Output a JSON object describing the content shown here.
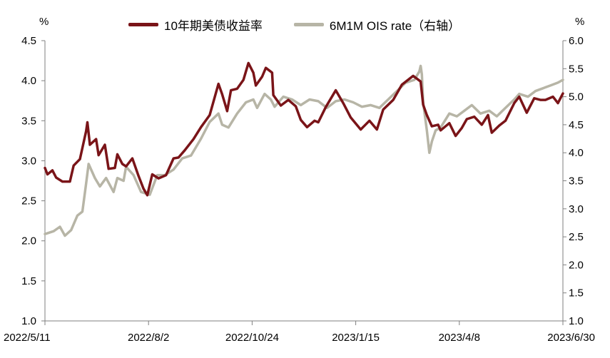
{
  "chart_data": {
    "type": "line",
    "title": "",
    "left_unit": "%",
    "right_unit": "%",
    "x_ticks": [
      "2022/5/11",
      "2022/8/2",
      "2022/10/24",
      "2023/1/15",
      "2023/4/8",
      "2023/6/30"
    ],
    "x_start": "2022/5/11",
    "x_end": "2023/6/30",
    "ylim_left": [
      1.0,
      4.5
    ],
    "yticks_left": [
      "1.0",
      "1.5",
      "2.0",
      "2.5",
      "3.0",
      "3.5",
      "4.0",
      "4.5"
    ],
    "ylim_right": [
      1.0,
      6.0
    ],
    "yticks_right": [
      "1.0",
      "1.5",
      "2.0",
      "2.5",
      "3.0",
      "3.5",
      "4.0",
      "4.5",
      "5.0",
      "5.5",
      "6.0"
    ],
    "legend_position": "top",
    "grid": false,
    "series": [
      {
        "name": "10年期美债收益率",
        "axis": "left",
        "color": "#7a1418",
        "points": [
          [
            "2022-05-11",
            2.91
          ],
          [
            "2022-05-13",
            2.83
          ],
          [
            "2022-05-17",
            2.88
          ],
          [
            "2022-05-20",
            2.79
          ],
          [
            "2022-05-25",
            2.74
          ],
          [
            "2022-05-31",
            2.74
          ],
          [
            "2022-06-03",
            2.94
          ],
          [
            "2022-06-08",
            3.02
          ],
          [
            "2022-06-13",
            3.37
          ],
          [
            "2022-06-14",
            3.48
          ],
          [
            "2022-06-16",
            3.2
          ],
          [
            "2022-06-21",
            3.27
          ],
          [
            "2022-06-23",
            3.07
          ],
          [
            "2022-06-28",
            3.2
          ],
          [
            "2022-07-01",
            2.9
          ],
          [
            "2022-07-06",
            2.91
          ],
          [
            "2022-07-08",
            3.08
          ],
          [
            "2022-07-12",
            2.96
          ],
          [
            "2022-07-15",
            2.93
          ],
          [
            "2022-07-20",
            3.03
          ],
          [
            "2022-07-25",
            2.81
          ],
          [
            "2022-07-29",
            2.65
          ],
          [
            "2022-08-01",
            2.57
          ],
          [
            "2022-08-05",
            2.83
          ],
          [
            "2022-08-10",
            2.78
          ],
          [
            "2022-08-16",
            2.82
          ],
          [
            "2022-08-22",
            3.03
          ],
          [
            "2022-08-26",
            3.04
          ],
          [
            "2022-08-31",
            3.13
          ],
          [
            "2022-09-07",
            3.27
          ],
          [
            "2022-09-13",
            3.42
          ],
          [
            "2022-09-20",
            3.57
          ],
          [
            "2022-09-27",
            3.96
          ],
          [
            "2022-09-30",
            3.83
          ],
          [
            "2022-10-04",
            3.62
          ],
          [
            "2022-10-07",
            3.88
          ],
          [
            "2022-10-12",
            3.9
          ],
          [
            "2022-10-17",
            4.01
          ],
          [
            "2022-10-21",
            4.22
          ],
          [
            "2022-10-25",
            4.1
          ],
          [
            "2022-10-27",
            3.94
          ],
          [
            "2022-11-01",
            4.05
          ],
          [
            "2022-11-04",
            4.16
          ],
          [
            "2022-11-09",
            4.1
          ],
          [
            "2022-11-10",
            3.82
          ],
          [
            "2022-11-16",
            3.69
          ],
          [
            "2022-11-22",
            3.76
          ],
          [
            "2022-11-28",
            3.68
          ],
          [
            "2022-12-02",
            3.51
          ],
          [
            "2022-12-07",
            3.42
          ],
          [
            "2022-12-13",
            3.5
          ],
          [
            "2022-12-16",
            3.48
          ],
          [
            "2022-12-22",
            3.67
          ],
          [
            "2022-12-30",
            3.88
          ],
          [
            "2023-01-05",
            3.72
          ],
          [
            "2023-01-11",
            3.54
          ],
          [
            "2023-01-19",
            3.39
          ],
          [
            "2023-01-26",
            3.5
          ],
          [
            "2023-02-01",
            3.39
          ],
          [
            "2023-02-06",
            3.64
          ],
          [
            "2023-02-14",
            3.76
          ],
          [
            "2023-02-21",
            3.95
          ],
          [
            "2023-03-02",
            4.06
          ],
          [
            "2023-03-08",
            3.99
          ],
          [
            "2023-03-10",
            3.7
          ],
          [
            "2023-03-13",
            3.57
          ],
          [
            "2023-03-17",
            3.43
          ],
          [
            "2023-03-22",
            3.45
          ],
          [
            "2023-03-24",
            3.38
          ],
          [
            "2023-03-31",
            3.47
          ],
          [
            "2023-04-05",
            3.31
          ],
          [
            "2023-04-10",
            3.41
          ],
          [
            "2023-04-14",
            3.52
          ],
          [
            "2023-04-20",
            3.55
          ],
          [
            "2023-04-26",
            3.45
          ],
          [
            "2023-05-01",
            3.57
          ],
          [
            "2023-05-04",
            3.35
          ],
          [
            "2023-05-10",
            3.44
          ],
          [
            "2023-05-15",
            3.5
          ],
          [
            "2023-05-22",
            3.72
          ],
          [
            "2023-05-26",
            3.8
          ],
          [
            "2023-06-01",
            3.6
          ],
          [
            "2023-06-07",
            3.78
          ],
          [
            "2023-06-12",
            3.76
          ],
          [
            "2023-06-16",
            3.76
          ],
          [
            "2023-06-22",
            3.8
          ],
          [
            "2023-06-26",
            3.72
          ],
          [
            "2023-06-30",
            3.84
          ]
        ]
      },
      {
        "name": "6M1M OIS rate（右轴）",
        "axis": "right",
        "color": "#b7b5a6",
        "points": [
          [
            "2022-05-11",
            2.55
          ],
          [
            "2022-05-18",
            2.6
          ],
          [
            "2022-05-23",
            2.68
          ],
          [
            "2022-05-27",
            2.52
          ],
          [
            "2022-06-01",
            2.62
          ],
          [
            "2022-06-06",
            2.88
          ],
          [
            "2022-06-10",
            2.95
          ],
          [
            "2022-06-13",
            3.45
          ],
          [
            "2022-06-15",
            3.8
          ],
          [
            "2022-06-20",
            3.55
          ],
          [
            "2022-06-24",
            3.4
          ],
          [
            "2022-06-29",
            3.55
          ],
          [
            "2022-07-05",
            3.3
          ],
          [
            "2022-07-08",
            3.55
          ],
          [
            "2022-07-13",
            3.5
          ],
          [
            "2022-07-15",
            3.75
          ],
          [
            "2022-07-21",
            3.6
          ],
          [
            "2022-07-27",
            3.3
          ],
          [
            "2022-08-03",
            3.25
          ],
          [
            "2022-08-09",
            3.6
          ],
          [
            "2022-08-15",
            3.6
          ],
          [
            "2022-08-22",
            3.7
          ],
          [
            "2022-08-29",
            3.9
          ],
          [
            "2022-09-05",
            3.95
          ],
          [
            "2022-09-13",
            4.25
          ],
          [
            "2022-09-20",
            4.55
          ],
          [
            "2022-09-27",
            4.7
          ],
          [
            "2022-09-30",
            4.5
          ],
          [
            "2022-10-05",
            4.45
          ],
          [
            "2022-10-12",
            4.7
          ],
          [
            "2022-10-19",
            4.9
          ],
          [
            "2022-10-25",
            4.95
          ],
          [
            "2022-10-28",
            4.8
          ],
          [
            "2022-11-03",
            5.05
          ],
          [
            "2022-11-08",
            4.95
          ],
          [
            "2022-11-11",
            4.82
          ],
          [
            "2022-11-18",
            5.0
          ],
          [
            "2022-11-25",
            4.95
          ],
          [
            "2022-12-02",
            4.85
          ],
          [
            "2022-12-09",
            4.95
          ],
          [
            "2022-12-16",
            4.92
          ],
          [
            "2022-12-23",
            4.8
          ],
          [
            "2022-12-30",
            4.92
          ],
          [
            "2023-01-06",
            4.95
          ],
          [
            "2023-01-13",
            4.9
          ],
          [
            "2023-01-20",
            4.82
          ],
          [
            "2023-01-27",
            4.85
          ],
          [
            "2023-02-03",
            4.8
          ],
          [
            "2023-02-10",
            4.95
          ],
          [
            "2023-02-17",
            5.1
          ],
          [
            "2023-02-24",
            5.25
          ],
          [
            "2023-03-03",
            5.3
          ],
          [
            "2023-03-07",
            5.45
          ],
          [
            "2023-03-08",
            5.55
          ],
          [
            "2023-03-09",
            5.4
          ],
          [
            "2023-03-10",
            4.9
          ],
          [
            "2023-03-13",
            4.4
          ],
          [
            "2023-03-15",
            4.0
          ],
          [
            "2023-03-17",
            4.2
          ],
          [
            "2023-03-20",
            4.4
          ],
          [
            "2023-03-24",
            4.45
          ],
          [
            "2023-03-31",
            4.7
          ],
          [
            "2023-04-06",
            4.65
          ],
          [
            "2023-04-12",
            4.75
          ],
          [
            "2023-04-18",
            4.85
          ],
          [
            "2023-04-25",
            4.7
          ],
          [
            "2023-05-02",
            4.75
          ],
          [
            "2023-05-08",
            4.65
          ],
          [
            "2023-05-15",
            4.8
          ],
          [
            "2023-05-22",
            4.95
          ],
          [
            "2023-05-26",
            5.05
          ],
          [
            "2023-06-02",
            5.0
          ],
          [
            "2023-06-08",
            5.1
          ],
          [
            "2023-06-14",
            5.15
          ],
          [
            "2023-06-20",
            5.2
          ],
          [
            "2023-06-26",
            5.25
          ],
          [
            "2023-06-30",
            5.3
          ]
        ]
      }
    ]
  }
}
